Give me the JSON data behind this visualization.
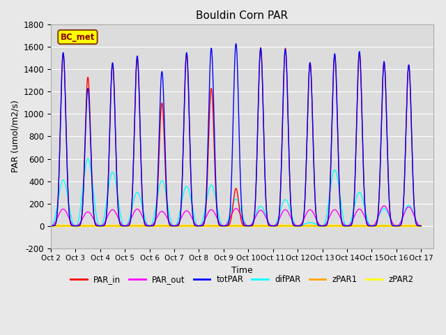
{
  "title": "Bouldin Corn PAR",
  "ylabel": "PAR (umol/m2/s)",
  "xlabel": "Time",
  "ylim": [
    -200,
    1800
  ],
  "background_color": "#e8e8e8",
  "plot_bg_color": "#dcdcdc",
  "grid_color": "white",
  "label_box_text": "BC_met",
  "label_box_facecolor": "yellow",
  "label_box_edgecolor": "#8B4513",
  "series": {
    "PAR_in": {
      "color": "red",
      "lw": 1.0
    },
    "PAR_out": {
      "color": "magenta",
      "lw": 1.0
    },
    "totPAR": {
      "color": "blue",
      "lw": 1.0
    },
    "difPAR": {
      "color": "cyan",
      "lw": 1.0
    },
    "zPAR1": {
      "color": "orange",
      "lw": 1.0
    },
    "zPAR2": {
      "color": "yellow",
      "lw": 2.5
    }
  },
  "tick_labels": [
    "Oct 2",
    "Oct 3",
    "Oct 4",
    "Oct 5",
    "Oct 6",
    "Oct 7",
    "Oct 8",
    "Oct 9",
    "Oct 10",
    "Oct 11",
    "Oct 12",
    "Oct 13",
    "Oct 14",
    "Oct 15",
    "Oct 16",
    "Oct 17"
  ],
  "num_days": 15,
  "day_peaks": {
    "totPAR": [
      1550,
      1230,
      1460,
      1520,
      1380,
      1550,
      1590,
      1630,
      1590,
      1580,
      1460,
      1540,
      1560,
      1470,
      1440
    ],
    "PAR_in": [
      1540,
      1330,
      1450,
      1500,
      1100,
      1540,
      1230,
      335,
      1595,
      1590,
      1460,
      1530,
      1545,
      1460,
      1440
    ],
    "PAR_out": [
      150,
      125,
      145,
      150,
      130,
      135,
      145,
      155,
      140,
      145,
      145,
      145,
      150,
      180,
      170
    ],
    "difPAR": [
      410,
      600,
      480,
      300,
      405,
      355,
      365,
      240,
      175,
      235,
      30,
      500,
      300,
      155,
      185
    ],
    "zPAR1": [
      0,
      0,
      0,
      0,
      0,
      0,
      0,
      0,
      0,
      0,
      0,
      0,
      0,
      0,
      0
    ],
    "zPAR2": [
      0,
      0,
      0,
      0,
      0,
      0,
      0,
      0,
      0,
      0,
      0,
      0,
      0,
      0,
      0
    ]
  },
  "sharp_sharpness": 8.0,
  "broad_sharpness": 2.5
}
